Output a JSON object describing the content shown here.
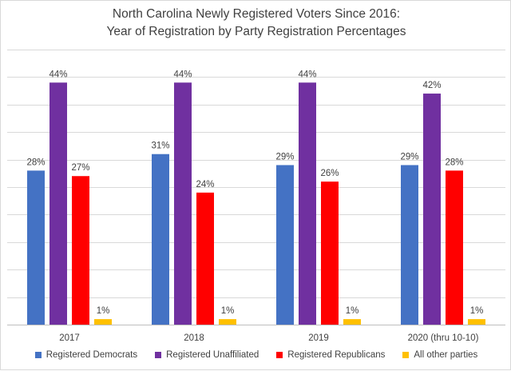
{
  "chart_data": {
    "type": "bar",
    "title": "North Carolina Newly Registered Voters Since 2016:",
    "subtitle": "Year of Registration by Party Registration Percentages",
    "categories": [
      "2017",
      "2018",
      "2019",
      "2020 (thru 10-10)"
    ],
    "series": [
      {
        "name": "Registered Democrats",
        "color": "#4472c4",
        "values": [
          28,
          31,
          29,
          29
        ],
        "labels": [
          "28%",
          "31%",
          "29%",
          "29%"
        ]
      },
      {
        "name": "Registered Unaffiliated",
        "color": "#7030a0",
        "values": [
          44,
          44,
          44,
          42
        ],
        "labels": [
          "44%",
          "44%",
          "44%",
          "42%"
        ]
      },
      {
        "name": "Registered Republicans",
        "color": "#ff0000",
        "values": [
          27,
          24,
          26,
          28
        ],
        "labels": [
          "27%",
          "24%",
          "26%",
          "28%"
        ]
      },
      {
        "name": "All other parties",
        "color": "#ffc000",
        "values": [
          1,
          1,
          1,
          1
        ],
        "labels": [
          "1%",
          "1%",
          "1%",
          "1%"
        ]
      }
    ],
    "xlabel": "",
    "ylabel": "",
    "ylim": [
      0,
      50
    ],
    "grid": true,
    "legend": "bottom"
  }
}
